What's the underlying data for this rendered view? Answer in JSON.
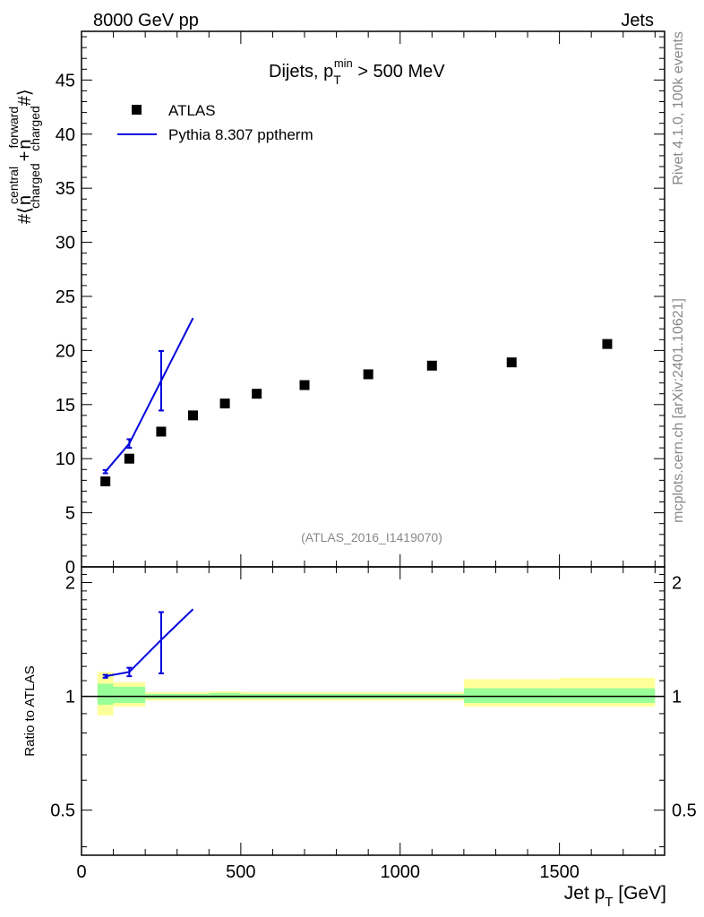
{
  "header": {
    "left": "8000 GeV pp",
    "right": "Jets"
  },
  "side_labels": {
    "rivet": "Rivet 4.1.0,  100k events",
    "mcplots": "mcplots.cern.ch [arXiv:2401.10621]"
  },
  "main_title": {
    "prefix": "Dijets, p",
    "sub": "T",
    "sup": "min",
    "suffix": " > 500 MeV"
  },
  "analysis_id": "(ATLAS_2016_I1419070)",
  "legend": [
    {
      "label": "ATLAS",
      "marker": "square",
      "color": "#000000"
    },
    {
      "label": "Pythia 8.307 pptherm",
      "marker": "line",
      "color": "#0000dd"
    }
  ],
  "y_axis_label_main": {
    "hash": "#",
    "lt": "⟨",
    "n1": "n",
    "n1_sup": "central",
    "n1_sub": "charged",
    "plus": "+",
    "n2": "n",
    "n2_sup": "forward",
    "n2_sub": "charged",
    "gt": "#⟩"
  },
  "y_axis_label_ratio": "Ratio to ATLAS",
  "x_axis_label": {
    "main": "Jet p",
    "sub": "T",
    "unit": " [GeV]"
  },
  "colors": {
    "data": "#000000",
    "mc": "#0000dd",
    "band_inner": "#99ff99",
    "band_outer": "#ffff99",
    "frame": "#000000"
  },
  "chart_data": [
    {
      "type": "scatter",
      "panel": "main",
      "xlim": [
        0,
        1830
      ],
      "ylim": [
        0,
        49.5
      ],
      "y_ticks": [
        0,
        5,
        10,
        15,
        20,
        25,
        30,
        35,
        40,
        45
      ],
      "series": [
        {
          "name": "ATLAS",
          "x": [
            75,
            150,
            250,
            350,
            450,
            550,
            700,
            900,
            1100,
            1350,
            1650
          ],
          "y": [
            7.9,
            10.0,
            12.5,
            14.0,
            15.1,
            16.0,
            16.8,
            17.8,
            18.6,
            18.9,
            20.6
          ]
        },
        {
          "name": "Pythia 8.307 pptherm",
          "x": [
            75,
            150,
            250,
            350
          ],
          "y": [
            8.8,
            11.4,
            17.2,
            23.0
          ],
          "yerr": [
            0.15,
            0.4,
            2.75,
            0
          ]
        }
      ]
    },
    {
      "type": "line",
      "panel": "ratio",
      "xlim": [
        0,
        1830
      ],
      "ylim": [
        0.38,
        2.2
      ],
      "y_ticks": [
        0.5,
        1,
        2
      ],
      "x_ticks": [
        0,
        500,
        1000,
        1500
      ],
      "series": [
        {
          "name": "Pythia 8.307 pptherm / ATLAS",
          "x": [
            75,
            150,
            250,
            350
          ],
          "y": [
            1.13,
            1.16,
            1.41,
            1.7
          ],
          "yerr": [
            0.01,
            0.03,
            0.26,
            0
          ]
        }
      ],
      "bands": [
        {
          "xlo": 50,
          "xhi": 100,
          "inner": [
            0.95,
            1.08
          ],
          "outer": [
            0.89,
            1.16
          ]
        },
        {
          "xlo": 100,
          "xhi": 200,
          "inner": [
            0.96,
            1.06
          ],
          "outer": [
            0.94,
            1.09
          ]
        },
        {
          "xlo": 200,
          "xhi": 300,
          "inner": [
            0.985,
            1.015
          ],
          "outer": [
            0.975,
            1.025
          ]
        },
        {
          "xlo": 300,
          "xhi": 400,
          "inner": [
            0.985,
            1.015
          ],
          "outer": [
            0.975,
            1.025
          ]
        },
        {
          "xlo": 400,
          "xhi": 500,
          "inner": [
            0.985,
            1.02
          ],
          "outer": [
            0.975,
            1.03
          ]
        },
        {
          "xlo": 500,
          "xhi": 600,
          "inner": [
            0.985,
            1.015
          ],
          "outer": [
            0.975,
            1.025
          ]
        },
        {
          "xlo": 600,
          "xhi": 800,
          "inner": [
            0.985,
            1.015
          ],
          "outer": [
            0.975,
            1.025
          ]
        },
        {
          "xlo": 800,
          "xhi": 1000,
          "inner": [
            0.985,
            1.015
          ],
          "outer": [
            0.975,
            1.025
          ]
        },
        {
          "xlo": 1000,
          "xhi": 1200,
          "inner": [
            0.985,
            1.015
          ],
          "outer": [
            0.975,
            1.025
          ]
        },
        {
          "xlo": 1200,
          "xhi": 1500,
          "inner": [
            0.96,
            1.05
          ],
          "outer": [
            0.94,
            1.11
          ]
        },
        {
          "xlo": 1500,
          "xhi": 1800,
          "inner": [
            0.96,
            1.05
          ],
          "outer": [
            0.94,
            1.12
          ]
        }
      ]
    }
  ]
}
